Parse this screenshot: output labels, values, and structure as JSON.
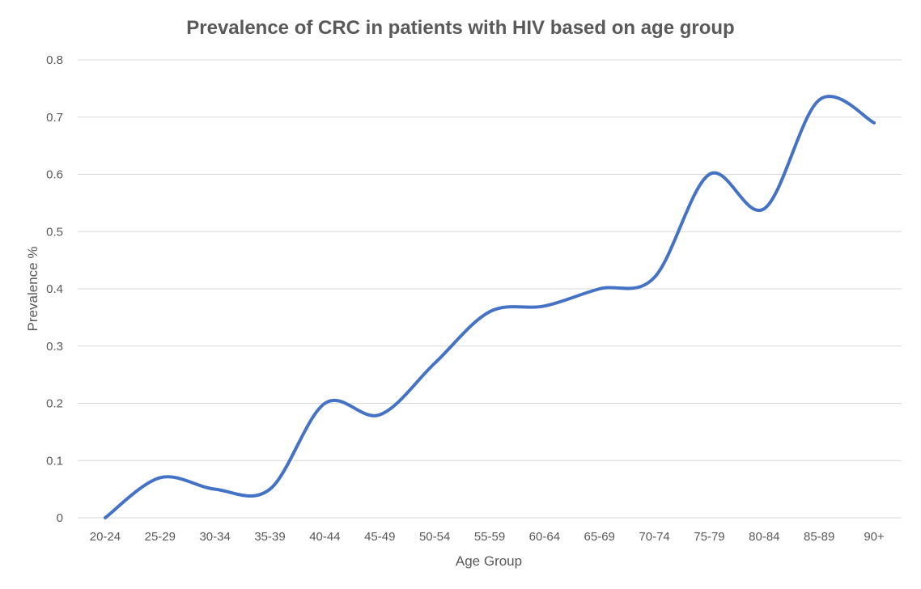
{
  "chart_data": {
    "type": "line",
    "title": "Prevalence of CRC in patients with HIV based on age group",
    "xlabel": "Age Group",
    "ylabel": "Prevalence %",
    "categories": [
      "20-24",
      "25-29",
      "30-34",
      "35-39",
      "40-44",
      "45-49",
      "50-54",
      "55-59",
      "60-64",
      "65-69",
      "70-74",
      "75-79",
      "80-84",
      "85-89",
      "90+"
    ],
    "series": [
      {
        "values": [
          0,
          0.07,
          0.05,
          0.05,
          0.2,
          0.18,
          0.27,
          0.36,
          0.37,
          0.4,
          0.42,
          0.6,
          0.54,
          0.73,
          0.69
        ]
      }
    ],
    "ylim": [
      0,
      0.8
    ],
    "yticks": [
      "0",
      "0.1",
      "0.2",
      "0.3",
      "0.4",
      "0.5",
      "0.6",
      "0.7",
      "0.8"
    ],
    "grid": true,
    "smooth": true,
    "legend": "none",
    "colors": {
      "line": "#4472c4"
    }
  }
}
